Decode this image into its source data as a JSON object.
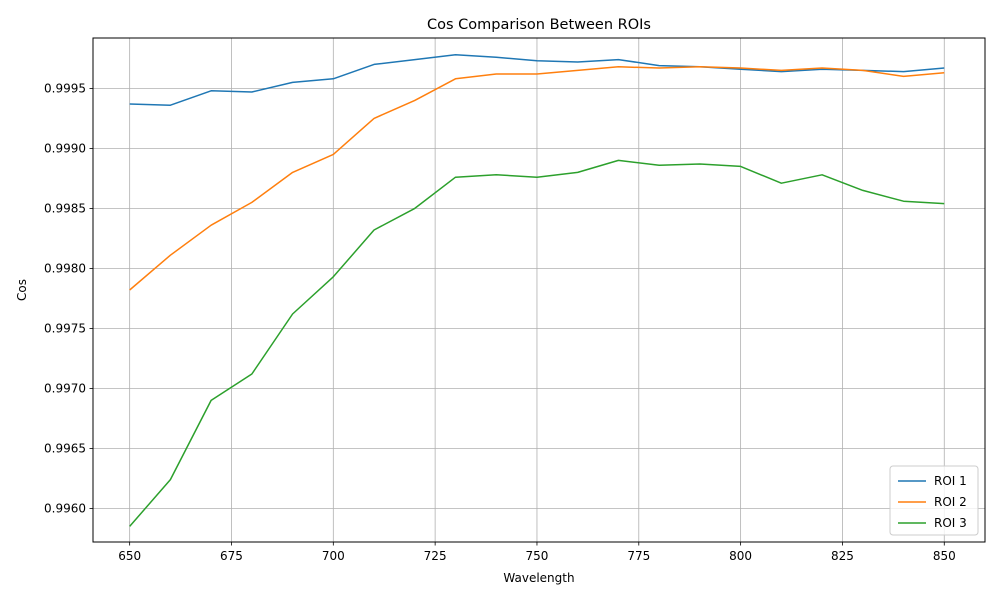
{
  "chart_data": {
    "type": "line",
    "title": "Cos Comparison Between ROIs",
    "xlabel": "Wavelength",
    "ylabel": "Cos",
    "xlim": [
      641,
      860
    ],
    "ylim": [
      0.99572,
      0.99992
    ],
    "xticks": [
      650,
      675,
      700,
      725,
      750,
      775,
      800,
      825,
      850
    ],
    "xtick_labels": [
      "650",
      "675",
      "700",
      "725",
      "750",
      "775",
      "800",
      "825",
      "850"
    ],
    "yticks": [
      0.996,
      0.9965,
      0.997,
      0.9975,
      0.998,
      0.9985,
      0.999,
      0.9995
    ],
    "ytick_labels": [
      "0.9960",
      "0.9965",
      "0.9970",
      "0.9975",
      "0.9980",
      "0.9985",
      "0.9990",
      "0.9995"
    ],
    "grid": true,
    "legend_position": "bottom-right",
    "x": [
      650,
      660,
      670,
      680,
      690,
      700,
      710,
      720,
      730,
      740,
      750,
      760,
      770,
      780,
      790,
      800,
      810,
      820,
      830,
      840,
      850
    ],
    "series": [
      {
        "name": "ROI 1",
        "color": "#1f77b4",
        "values": [
          0.99937,
          0.99936,
          0.99948,
          0.99947,
          0.99955,
          0.99958,
          0.9997,
          0.99974,
          0.99978,
          0.99976,
          0.99973,
          0.99972,
          0.99974,
          0.99969,
          0.99968,
          0.99966,
          0.99964,
          0.99966,
          0.99965,
          0.99964,
          0.99967
        ]
      },
      {
        "name": "ROI 2",
        "color": "#ff7f0e",
        "values": [
          0.99782,
          0.99811,
          0.99836,
          0.99855,
          0.9988,
          0.99895,
          0.99925,
          0.9994,
          0.99958,
          0.99962,
          0.99962,
          0.99965,
          0.99968,
          0.99967,
          0.99968,
          0.99967,
          0.99965,
          0.99967,
          0.99965,
          0.9996,
          0.99963
        ]
      },
      {
        "name": "ROI 3",
        "color": "#2ca02c",
        "values": [
          0.99585,
          0.99624,
          0.9969,
          0.99712,
          0.99762,
          0.99793,
          0.99832,
          0.9985,
          0.99876,
          0.99878,
          0.99876,
          0.9988,
          0.9989,
          0.99886,
          0.99887,
          0.99885,
          0.99871,
          0.99878,
          0.99865,
          0.99856,
          0.99854
        ]
      }
    ]
  }
}
